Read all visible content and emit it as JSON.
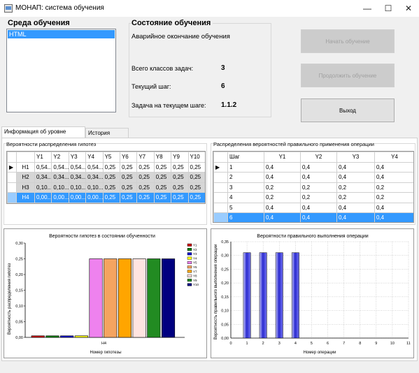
{
  "window": {
    "title": "МОНАП: система обучения",
    "minimize": "—",
    "maximize": "☐",
    "close": "✕"
  },
  "env": {
    "label": "Среда обучения",
    "items": [
      "HTML"
    ]
  },
  "state": {
    "label": "Состояние обучения",
    "status": "Аварийное окончание обучения",
    "rows": [
      {
        "label": "Всего классов задач:",
        "value": "3"
      },
      {
        "label": "Текущий шаг:",
        "value": "6"
      },
      {
        "label": "Задача на текущем шаге:",
        "value": "1.1.2"
      }
    ]
  },
  "buttons": {
    "start": "Начать обучение",
    "continue": "Продолжить обучение",
    "exit": "Выход"
  },
  "tabs": [
    "Информация об уровне обученности",
    "История обучения"
  ],
  "grid1": {
    "caption": "Вероятности распределения гипотез",
    "columns": [
      "Y1",
      "Y2",
      "Y3",
      "Y4",
      "Y5",
      "Y6",
      "Y7",
      "Y8",
      "Y9",
      "Y10"
    ],
    "rows": [
      {
        "name": "H1",
        "cells": [
          "0,54...",
          "0,54...",
          "0,54...",
          "0,54...",
          "0,25",
          "0,25",
          "0,25",
          "0,25",
          "0,25",
          "0,25"
        ]
      },
      {
        "name": "H2",
        "cells": [
          "0,34...",
          "0,34...",
          "0,34...",
          "0,34...",
          "0,25",
          "0,25",
          "0,25",
          "0,25",
          "0,25",
          "0,25"
        ]
      },
      {
        "name": "H3",
        "cells": [
          "0,10...",
          "0,10...",
          "0,10...",
          "0,10...",
          "0,25",
          "0,25",
          "0,25",
          "0,25",
          "0,25",
          "0,25"
        ]
      },
      {
        "name": "H4",
        "cells": [
          "0,00...",
          "0,00...",
          "0,00...",
          "0,00...",
          "0,25",
          "0,25",
          "0,25",
          "0,25",
          "0,25",
          "0,25"
        ]
      }
    ]
  },
  "grid2": {
    "caption": "Распределения вероятностей правильного применения операции",
    "columns": [
      "Шаг",
      "Y1",
      "Y2",
      "Y3",
      "Y4"
    ],
    "rows": [
      [
        "1",
        "0,4",
        "0,4",
        "0,4",
        "0,4"
      ],
      [
        "2",
        "0,4",
        "0,4",
        "0,4",
        "0,4"
      ],
      [
        "3",
        "0,2",
        "0,2",
        "0,2",
        "0,2"
      ],
      [
        "4",
        "0,2",
        "0,2",
        "0,2",
        "0,2"
      ],
      [
        "5",
        "0,4",
        "0,4",
        "0,4",
        "0,4"
      ],
      [
        "6",
        "0,4",
        "0,4",
        "0,4",
        "0,4"
      ]
    ]
  },
  "colors": {
    "selection": "#3399ff",
    "chart_blue_bar": "#2a2ad0"
  },
  "chart_data": [
    {
      "type": "bar",
      "title": "Вероятности гипотез в состоянии обученности",
      "xlabel": "Номер гипотезы",
      "ylabel": "Вероятность распределения гипотез",
      "categories": [
        "H4"
      ],
      "ylim": [
        0,
        0.3
      ],
      "yticks": [
        "0,00",
        "0,05",
        "0,10",
        "0,15",
        "0,20",
        "0,25",
        "0,30"
      ],
      "grid": false,
      "legend_position": "right",
      "series": [
        {
          "name": "Y1",
          "color": "#cc0000",
          "values": [
            0.005
          ]
        },
        {
          "name": "Y2",
          "color": "#008000",
          "values": [
            0.005
          ]
        },
        {
          "name": "Y3",
          "color": "#0000cc",
          "values": [
            0.005
          ]
        },
        {
          "name": "Y4",
          "color": "#ffff00",
          "values": [
            0.005
          ]
        },
        {
          "name": "Y5",
          "color": "#ee82ee",
          "values": [
            0.25
          ]
        },
        {
          "name": "Y6",
          "color": "#f4a460",
          "values": [
            0.25
          ]
        },
        {
          "name": "Y7",
          "color": "#ffa500",
          "values": [
            0.25
          ]
        },
        {
          "name": "Y8",
          "color": "#ffe4e1",
          "values": [
            0.25
          ]
        },
        {
          "name": "Y9",
          "color": "#228b22",
          "values": [
            0.25
          ]
        },
        {
          "name": "Y10",
          "color": "#000080",
          "values": [
            0.25
          ]
        }
      ]
    },
    {
      "type": "bar",
      "title": "Вероятности правильного выполнения операции",
      "xlabel": "Номер операции",
      "ylabel": "Вероятность правильного выполнения операции",
      "x": [
        1,
        2,
        3,
        4
      ],
      "values": [
        0.31,
        0.31,
        0.31,
        0.31
      ],
      "xlim": [
        0,
        11
      ],
      "xticks": [
        "0",
        "1",
        "2",
        "3",
        "4",
        "5",
        "6",
        "7",
        "8",
        "9",
        "10",
        "11"
      ],
      "ylim": [
        0,
        0.35
      ],
      "yticks": [
        "0,00",
        "0,05",
        "0,10",
        "0,15",
        "0,20",
        "0,25",
        "0,30",
        "0,35"
      ],
      "grid": true
    }
  ]
}
